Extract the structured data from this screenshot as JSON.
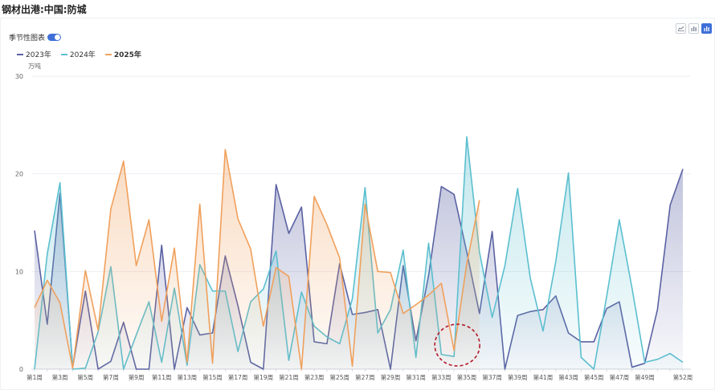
{
  "page": {
    "title": "钢材出港:中国:防城"
  },
  "controls": {
    "seasonal_toggle_label": "季节性图表",
    "seasonal_toggle_on": true
  },
  "toolbar": {
    "icons": [
      "line-chart-icon",
      "bar-chart-icon",
      "area-chart-icon"
    ],
    "active": "area-chart-icon"
  },
  "chart_data": {
    "type": "area",
    "title": "钢材出港:中国:防城",
    "ylabel": "万吨",
    "ylim": [
      0,
      30
    ],
    "yticks": [
      0,
      10,
      20,
      30
    ],
    "legend_position": "top-left",
    "grid": true,
    "x": [
      "第1周",
      "第2周",
      "第3周",
      "第4周",
      "第5周",
      "第6周",
      "第7周",
      "第8周",
      "第9周",
      "第10周",
      "第11周",
      "第12周",
      "第13周",
      "第14周",
      "第15周",
      "第16周",
      "第17周",
      "第18周",
      "第19周",
      "第20周",
      "第21周",
      "第22周",
      "第23周",
      "第24周",
      "第25周",
      "第26周",
      "第27周",
      "第28周",
      "第29周",
      "第30周",
      "第31周",
      "第32周",
      "第33周",
      "第34周",
      "第35周",
      "第36周",
      "第37周",
      "第38周",
      "第39周",
      "第40周",
      "第41周",
      "第42周",
      "第43周",
      "第44周",
      "第45周",
      "第46周",
      "第47周",
      "第48周",
      "第49周",
      "第50周",
      "第51周",
      "第52周"
    ],
    "xticks": [
      "第1周",
      "第3周",
      "第5周",
      "第7周",
      "第9周",
      "第11周",
      "第13周",
      "第15周",
      "第17周",
      "第19周",
      "第21周",
      "第23周",
      "第25周",
      "第27周",
      "第29周",
      "第31周",
      "第33周",
      "第35周",
      "第37周",
      "第39周",
      "第41周",
      "第43周",
      "第45周",
      "第47周",
      "第49周",
      "第52周"
    ],
    "series": [
      {
        "name": "2023年",
        "color": "#5b62a3",
        "values": [
          14.2,
          4.6,
          18.0,
          0.2,
          8.0,
          0.0,
          0.8,
          4.8,
          0.0,
          0.0,
          12.7,
          0.0,
          6.3,
          3.5,
          3.7,
          11.6,
          6.5,
          0.7,
          0.0,
          18.9,
          13.9,
          16.6,
          2.8,
          2.6,
          10.8,
          5.6,
          5.8,
          6.1,
          0.0,
          10.6,
          2.9,
          9.6,
          18.7,
          17.9,
          12.0,
          5.7,
          14.1,
          0.0,
          5.5,
          5.9,
          6.1,
          7.5,
          3.7,
          2.8,
          2.8,
          6.2,
          6.9,
          0.2,
          0.6,
          6.1,
          16.8,
          20.5
        ]
      },
      {
        "name": "2024年",
        "color": "#5bbfcf",
        "values": [
          0.0,
          11.8,
          19.1,
          0.0,
          0.1,
          3.8,
          10.5,
          0.0,
          3.5,
          6.9,
          0.7,
          8.3,
          0.4,
          10.7,
          8.0,
          8.0,
          1.8,
          6.9,
          8.2,
          12.1,
          0.9,
          7.9,
          4.4,
          3.3,
          2.6,
          7.2,
          18.6,
          3.7,
          6.1,
          12.2,
          1.2,
          12.9,
          1.5,
          1.3,
          23.8,
          12.0,
          5.3,
          10.6,
          18.5,
          9.3,
          3.9,
          11.0,
          20.1,
          1.2,
          0.0,
          7.4,
          15.3,
          8.3,
          0.7,
          1.0,
          1.6,
          0.7
        ]
      },
      {
        "name": "2025年",
        "color": "#f0a05c",
        "values": [
          6.3,
          9.1,
          6.8,
          0.1,
          10.1,
          4.0,
          16.4,
          21.3,
          10.6,
          15.3,
          4.9,
          12.4,
          0.7,
          16.9,
          0.6,
          22.5,
          15.4,
          12.3,
          4.4,
          10.4,
          9.5,
          0.0,
          17.7,
          14.8,
          11.4,
          0.3,
          16.9,
          10.0,
          9.9,
          5.7,
          6.6,
          7.6,
          8.8,
          1.9,
          10.8,
          17.3,
          null,
          null,
          null,
          null,
          null,
          null,
          null,
          null,
          null,
          null,
          null,
          null,
          null,
          null,
          null,
          null
        ]
      }
    ]
  }
}
